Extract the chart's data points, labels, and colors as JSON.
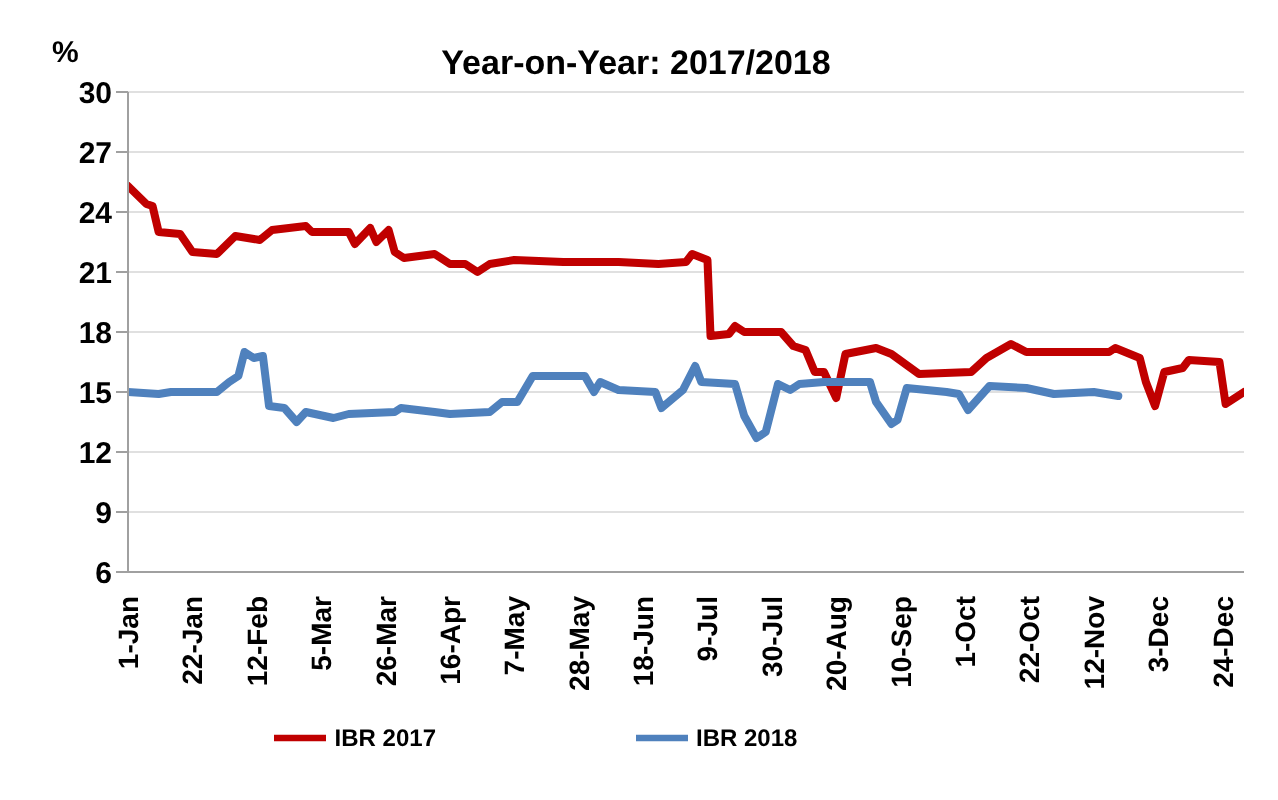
{
  "chart_data": {
    "type": "line",
    "title": "Year-on-Year: 2017/2018",
    "ylabel": "%",
    "ylim": [
      6,
      30
    ],
    "yticks": [
      6,
      9,
      12,
      15,
      18,
      21,
      24,
      27,
      30
    ],
    "xlim": [
      "--01-01",
      "--12-31"
    ],
    "xticks": [
      {
        "value": "--01-01",
        "label": "1-Jan"
      },
      {
        "value": "--01-22",
        "label": "22-Jan"
      },
      {
        "value": "--02-12",
        "label": "12-Feb"
      },
      {
        "value": "--03-05",
        "label": "5-Mar"
      },
      {
        "value": "--03-26",
        "label": "26-Mar"
      },
      {
        "value": "--04-16",
        "label": "16-Apr"
      },
      {
        "value": "--05-07",
        "label": "7-May"
      },
      {
        "value": "--05-28",
        "label": "28-May"
      },
      {
        "value": "--06-18",
        "label": "18-Jun"
      },
      {
        "value": "--07-09",
        "label": "9-Jul"
      },
      {
        "value": "--07-30",
        "label": "30-Jul"
      },
      {
        "value": "--08-20",
        "label": "20-Aug"
      },
      {
        "value": "--09-10",
        "label": "10-Sep"
      },
      {
        "value": "--10-01",
        "label": "1-Oct"
      },
      {
        "value": "--10-22",
        "label": "22-Oct"
      },
      {
        "value": "--11-12",
        "label": "12-Nov"
      },
      {
        "value": "--12-03",
        "label": "3-Dec"
      },
      {
        "value": "--12-24",
        "label": "24-Dec"
      }
    ],
    "grid": "y",
    "legend": "bottom",
    "marker": "none",
    "line_style": "solid",
    "series": [
      {
        "name": "IBR 2017",
        "color": "#c00000",
        "x": [
          "--01-01",
          "--01-07",
          "--01-09",
          "--01-11",
          "--01-18",
          "--01-22",
          "--01-30",
          "--02-05",
          "--02-13",
          "--02-17",
          "--02-28",
          "--03-02",
          "--03-14",
          "--03-16",
          "--03-21",
          "--03-23",
          "--03-27",
          "--03-29",
          "--04-01",
          "--04-11",
          "--04-16",
          "--04-21",
          "--04-25",
          "--04-29",
          "--05-07",
          "--05-23",
          "--06-10",
          "--06-23",
          "--07-02",
          "--07-04",
          "--07-09",
          "--07-10",
          "--07-16",
          "--07-18",
          "--07-21",
          "--08-02",
          "--08-06",
          "--08-10",
          "--08-13",
          "--08-16",
          "--08-20",
          "--08-23",
          "--09-02",
          "--09-07",
          "--09-16",
          "--10-03",
          "--10-08",
          "--10-16",
          "--10-21",
          "--11-17",
          "--11-19",
          "--11-27",
          "--11-29",
          "--12-02",
          "--12-05",
          "--12-11",
          "--12-13",
          "--12-23",
          "--12-25",
          "--12-31"
        ],
        "values": [
          25.3,
          24.4,
          24.3,
          23.0,
          22.9,
          22.0,
          21.9,
          22.8,
          22.6,
          23.1,
          23.3,
          23.0,
          23.0,
          22.4,
          23.2,
          22.5,
          23.1,
          22.0,
          21.7,
          21.9,
          21.4,
          21.4,
          21.0,
          21.4,
          21.6,
          21.5,
          21.5,
          21.4,
          21.5,
          21.9,
          21.6,
          17.8,
          17.9,
          18.3,
          18.0,
          18.0,
          17.3,
          17.1,
          16.0,
          16.0,
          14.7,
          16.9,
          17.2,
          16.9,
          15.9,
          16.0,
          16.7,
          17.4,
          17.0,
          17.0,
          17.2,
          16.7,
          15.5,
          14.3,
          16.0,
          16.2,
          16.6,
          16.5,
          14.4,
          15.0
        ]
      },
      {
        "name": "IBR 2018",
        "color": "#4f81bd",
        "x": [
          "--01-01",
          "--01-11",
          "--01-15",
          "--01-30",
          "--02-03",
          "--02-06",
          "--02-08",
          "--02-11",
          "--02-14",
          "--02-16",
          "--02-21",
          "--02-25",
          "--02-28",
          "--03-09",
          "--03-14",
          "--03-29",
          "--03-31",
          "--04-11",
          "--04-16",
          "--04-29",
          "--05-03",
          "--05-08",
          "--05-13",
          "--05-30",
          "--06-02",
          "--06-04",
          "--06-10",
          "--06-22",
          "--06-24",
          "--07-01",
          "--07-05",
          "--07-07",
          "--07-18",
          "--07-21",
          "--07-25",
          "--07-28",
          "--08-01",
          "--08-05",
          "--08-08",
          "--08-16",
          "--08-31",
          "--09-02",
          "--09-07",
          "--09-09",
          "--09-12",
          "--09-25",
          "--09-29",
          "--10-02",
          "--10-09",
          "--10-21",
          "--10-30",
          "--11-12",
          "--11-20"
        ],
        "values": [
          15.0,
          14.9,
          15.0,
          15.0,
          15.5,
          15.8,
          17.0,
          16.7,
          16.8,
          14.3,
          14.2,
          13.5,
          14.0,
          13.7,
          13.9,
          14.0,
          14.2,
          14.0,
          13.9,
          14.0,
          14.5,
          14.5,
          15.8,
          15.8,
          15.0,
          15.5,
          15.1,
          15.0,
          14.2,
          15.1,
          16.3,
          15.5,
          15.4,
          13.8,
          12.7,
          13.0,
          15.4,
          15.1,
          15.4,
          15.5,
          15.5,
          14.5,
          13.4,
          13.6,
          15.2,
          15.0,
          14.9,
          14.1,
          15.3,
          15.2,
          14.9,
          15.0,
          14.8
        ]
      }
    ]
  }
}
